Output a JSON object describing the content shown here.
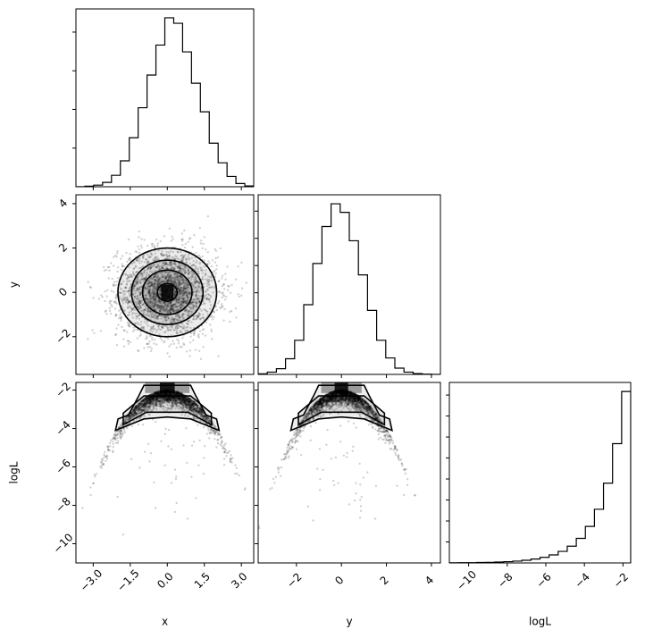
{
  "chart_data": {
    "type": "corner",
    "params": [
      "x",
      "y",
      "logL"
    ],
    "colors": {
      "line": "#000000",
      "points": "#000000",
      "background": "#ffffff"
    },
    "panels": [
      {
        "id": "hist-x",
        "type": "histogram",
        "row": 0,
        "col": 0,
        "param": "x",
        "xlim": [
          -3.7,
          3.5
        ],
        "bins": [
          -3.7,
          -3.34,
          -2.98,
          -2.62,
          -2.26,
          -1.9,
          -1.54,
          -1.18,
          -0.82,
          -0.46,
          -0.1,
          0.26,
          0.62,
          0.98,
          1.34,
          1.7,
          2.06,
          2.42,
          2.78,
          3.14,
          3.5
        ],
        "counts": [
          0,
          2,
          6,
          16,
          42,
          95,
          180,
          290,
          410,
          520,
          620,
          600,
          495,
          380,
          275,
          160,
          88,
          38,
          12,
          3
        ],
        "xticks": [
          -3.0,
          -1.5,
          0.0,
          1.5,
          3.0
        ],
        "xticklabels": [],
        "yticks_count": 4
      },
      {
        "id": "scatter-x-y",
        "type": "2d",
        "row": 1,
        "col": 0,
        "xparam": "x",
        "yparam": "y",
        "xlim": [
          -3.7,
          3.5
        ],
        "ylim": [
          -3.7,
          4.4
        ],
        "xticks": [
          -3.0,
          -1.5,
          0.0,
          1.5,
          3.0
        ],
        "xticklabels": [],
        "yticks": [
          -2,
          0,
          2,
          4
        ],
        "yticklabels": [
          "−2",
          "0",
          "2",
          "4"
        ],
        "ylabel": "y"
      },
      {
        "id": "hist-y",
        "type": "histogram",
        "row": 1,
        "col": 1,
        "param": "y",
        "xlim": [
          -3.7,
          4.4
        ],
        "bins": [
          -3.7,
          -3.295,
          -2.89,
          -2.485,
          -2.08,
          -1.675,
          -1.27,
          -0.865,
          -0.46,
          -0.055,
          0.35,
          0.755,
          1.16,
          1.565,
          1.97,
          2.375,
          2.78,
          3.185,
          3.59,
          3.995,
          4.4
        ],
        "counts": [
          2,
          8,
          20,
          55,
          120,
          245,
          390,
          520,
          600,
          570,
          470,
          350,
          225,
          120,
          58,
          22,
          8,
          3,
          1,
          0
        ],
        "xticks": [
          -2,
          0,
          2,
          4
        ],
        "xticklabels": [],
        "yticks_count": 6
      },
      {
        "id": "scatter-x-logL",
        "type": "2d",
        "row": 2,
        "col": 0,
        "xparam": "x",
        "yparam": "logL",
        "xlim": [
          -3.7,
          3.5
        ],
        "ylim": [
          -11.0,
          -1.6
        ],
        "xticks": [
          -3.0,
          -1.5,
          0.0,
          1.5,
          3.0
        ],
        "xticklabels": [
          "−3.0",
          "−1.5",
          "0.0",
          "1.5",
          "3.0"
        ],
        "yticks": [
          -10,
          -8,
          -6,
          -4,
          -2
        ],
        "yticklabels": [
          "−10",
          "−8",
          "−6",
          "−4",
          "−2"
        ],
        "xlabel": "x",
        "ylabel": "logL"
      },
      {
        "id": "scatter-y-logL",
        "type": "2d",
        "row": 2,
        "col": 1,
        "xparam": "y",
        "yparam": "logL",
        "xlim": [
          -3.7,
          4.4
        ],
        "ylim": [
          -11.0,
          -1.6
        ],
        "xticks": [
          -2,
          0,
          2,
          4
        ],
        "xticklabels": [
          "−2",
          "0",
          "2",
          "4"
        ],
        "yticks": [
          -10,
          -8,
          -6,
          -4,
          -2
        ],
        "yticklabels": [],
        "xlabel": "y"
      },
      {
        "id": "hist-logL",
        "type": "histogram",
        "row": 2,
        "col": 2,
        "param": "logL",
        "xlim": [
          -11.0,
          -1.6
        ],
        "bins": [
          -11.0,
          -10.53,
          -10.06,
          -9.59,
          -9.12,
          -8.65,
          -8.18,
          -7.71,
          -7.24,
          -6.77,
          -6.3,
          -5.83,
          -5.36,
          -4.89,
          -4.42,
          -3.95,
          -3.48,
          -3.01,
          -2.54,
          -2.07,
          -1.6
        ],
        "counts": [
          2,
          3,
          4,
          6,
          8,
          12,
          17,
          25,
          36,
          52,
          75,
          108,
          155,
          225,
          330,
          490,
          720,
          1070,
          1600,
          2300
        ],
        "xticks": [
          -10,
          -8,
          -6,
          -4,
          -2
        ],
        "xticklabels": [
          "−10",
          "−8",
          "−6",
          "−4",
          "−2"
        ],
        "yticks_count": 8,
        "xlabel": "logL"
      }
    ]
  }
}
